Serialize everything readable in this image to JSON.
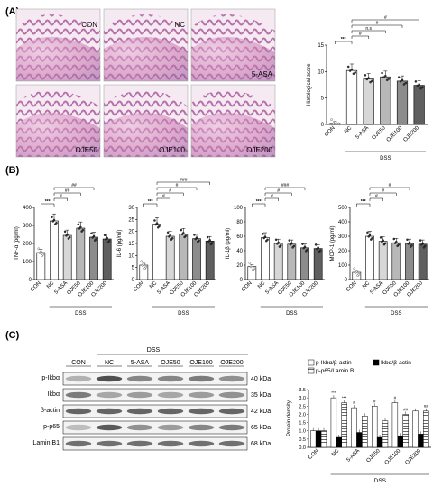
{
  "panels": {
    "A": {
      "label": "(A)",
      "micro_labels": [
        "CON",
        "NC",
        "5-ASA",
        "OJE50",
        "OJE100",
        "OJE200"
      ],
      "chart": {
        "type": "bar",
        "ylabel": "Histological score",
        "categories": [
          "CON",
          "NC",
          "5-ASA",
          "OJE50",
          "OJE100",
          "OJE200"
        ],
        "values": [
          0.2,
          10.2,
          8.6,
          9.0,
          8.2,
          7.4
        ],
        "ylim": [
          0,
          15
        ],
        "yticks": [
          "0",
          "5",
          "10",
          "15"
        ],
        "group_label": "DSS",
        "sig": [
          "***",
          "#",
          "n.s",
          "#",
          "#"
        ]
      }
    },
    "B": {
      "label": "(B)",
      "group_label": "DSS",
      "charts": [
        {
          "ylabel": "TNF-α (pg/ml)",
          "yticks": [
            "0",
            "100",
            "200",
            "300",
            "400"
          ],
          "ymax": 400,
          "values": [
            150,
            325,
            245,
            285,
            235,
            225
          ],
          "sig": [
            "***",
            "#",
            "##",
            "##"
          ]
        },
        {
          "ylabel": "IL-6 (pg/ml)",
          "yticks": [
            "0",
            "5",
            "10",
            "15",
            "20",
            "25",
            "30"
          ],
          "ymax": 30,
          "values": [
            6,
            23,
            18,
            19,
            17,
            16
          ],
          "sig": [
            "***",
            "#",
            "#",
            "#",
            "###"
          ]
        },
        {
          "ylabel": "IL-1β (pg/ml)",
          "yticks": [
            "0",
            "20",
            "40",
            "60",
            "80",
            "100"
          ],
          "ymax": 100,
          "values": [
            18,
            58,
            50,
            49,
            44,
            43
          ],
          "sig": [
            "***",
            "#",
            "#",
            "###"
          ]
        },
        {
          "ylabel": "MCP-1 (pg/ml)",
          "yticks": [
            "0",
            "100",
            "200",
            "300",
            "400",
            "500"
          ],
          "ymax": 500,
          "values": [
            50,
            300,
            265,
            255,
            250,
            245
          ],
          "sig": [
            "***",
            "#",
            "#",
            "#"
          ]
        }
      ],
      "categories": [
        "CON",
        "NC",
        "5-ASA",
        "OJE50",
        "OJE100",
        "OJE200"
      ]
    },
    "C": {
      "label": "(C)",
      "dss": "DSS",
      "lanes": [
        "CON",
        "NC",
        "5-ASA",
        "OJE50",
        "OJE100",
        "OJE200"
      ],
      "bands": [
        {
          "name": "p-Ikbα",
          "kda": "40 kDa"
        },
        {
          "name": "Ikbα",
          "kda": "35 kDa"
        },
        {
          "name": "β-actin",
          "kda": "42 kDa"
        },
        {
          "name": "p-p65",
          "kda": "65 kDa"
        },
        {
          "name": "Lamin B1",
          "kda": "68 kDa"
        }
      ],
      "chart": {
        "type": "bar",
        "ylabel": "Protein density",
        "yticks": [
          "0.0",
          "0.5",
          "1.0",
          "1.5",
          "2.0",
          "2.5",
          "3.0",
          "3.5"
        ],
        "ylim": [
          0,
          3.5
        ],
        "categories": [
          "CON",
          "NC",
          "5-ASA",
          "OJE50",
          "OJE100",
          "OJE200"
        ],
        "legend": [
          "p-Ikbα/β-actin",
          "Ikbα/β-actin",
          "p-p65/Lamin B"
        ],
        "series": [
          {
            "name": "p-Ikbα/β-actin",
            "values": [
              1.0,
              3.0,
              2.4,
              2.5,
              2.7,
              2.2
            ]
          },
          {
            "name": "Ikbα/β-actin",
            "values": [
              1.0,
              0.6,
              0.9,
              0.6,
              0.7,
              0.8
            ]
          },
          {
            "name": "p-p65/Lamin B",
            "values": [
              1.0,
              2.7,
              1.9,
              1.6,
              2.0,
              2.2
            ]
          }
        ],
        "group_label": "DSS",
        "sig_labels": [
          "***",
          "***",
          "#",
          "#",
          "#",
          "##",
          "##"
        ]
      }
    }
  },
  "colors": {
    "he_pink": "#d98fc6",
    "he_purple": "#8a4fa0",
    "he_bg": "#f4e6ef"
  }
}
